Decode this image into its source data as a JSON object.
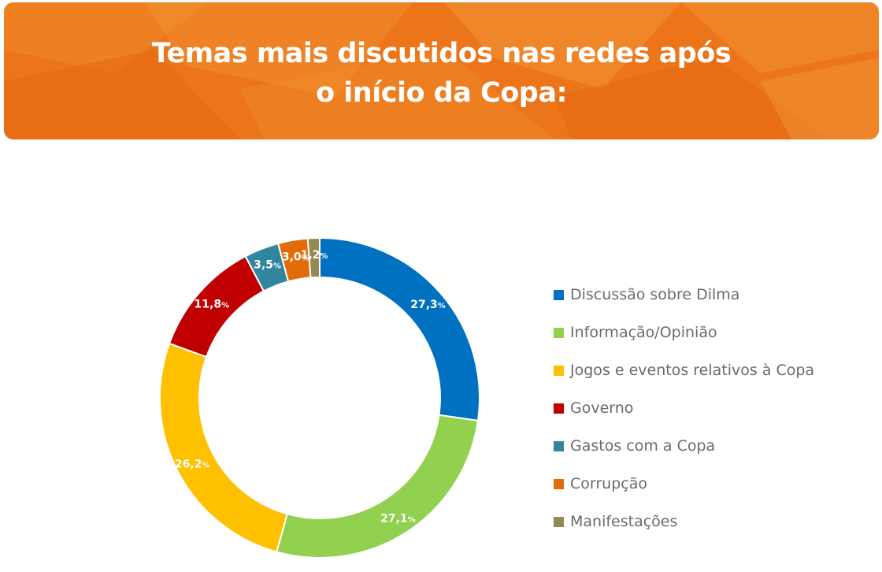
{
  "header": {
    "title_line1": "Temas mais discutidos nas redes após",
    "title_line2": "o início da Copa:"
  },
  "chart_data": {
    "type": "pie",
    "donut": true,
    "categories": [
      "Discussão sobre Dilma",
      "Informação/Opinião",
      "Jogos e eventos relativos à Copa",
      "Governo",
      "Gastos com a Copa",
      "Corrupção",
      "Manifestações"
    ],
    "values": [
      27.3,
      27.1,
      26.2,
      11.8,
      3.5,
      3.0,
      1.2
    ],
    "labels": [
      "27,3",
      "27,1",
      "26,2",
      "11,8",
      "3,5",
      "3,0",
      "1,2"
    ],
    "unit": "%",
    "colors": [
      "#0070c0",
      "#92d050",
      "#ffc000",
      "#c00000",
      "#31859c",
      "#e36c0a",
      "#948a54"
    ],
    "legend_position": "right",
    "title": "Temas mais discutidos nas redes após o início da Copa:"
  }
}
